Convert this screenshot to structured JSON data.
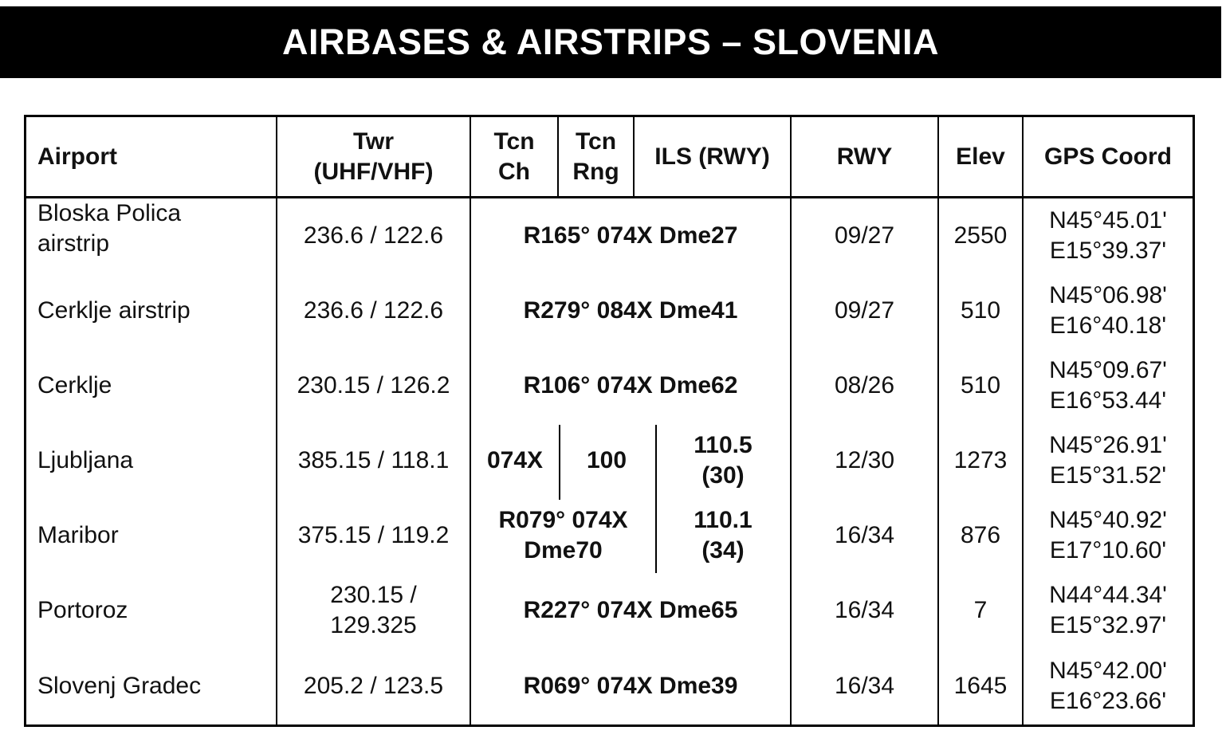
{
  "title": "AIRBASES & AIRSTRIPS – SLOVENIA",
  "headers": {
    "airport": "Airport",
    "twr_line1": "Twr",
    "twr_line2": "(UHF/VHF)",
    "tcn_ch_line1": "Tcn",
    "tcn_ch_line2": "Ch",
    "tcn_rng_line1": "Tcn",
    "tcn_rng_line2": "Rng",
    "ils": "ILS (RWY)",
    "rwy": "RWY",
    "elev": "Elev",
    "gps": "GPS Coord"
  },
  "rows": [
    {
      "airport_1": "Bloska Polica",
      "airport_2": "airstrip",
      "twr": "236.6 / 122.6",
      "nav": "R165° 074X Dme27",
      "rwy": "09/27",
      "elev": "2550",
      "lat": "N45°45.01'",
      "lon": "E15°39.37'"
    },
    {
      "airport": "Cerklje airstrip",
      "twr": "236.6 / 122.6",
      "nav": "R279° 084X Dme41",
      "rwy": "09/27",
      "elev": "510",
      "lat": "N45°06.98'",
      "lon": "E16°40.18'"
    },
    {
      "airport": "Cerklje",
      "twr": "230.15 / 126.2",
      "nav": "R106° 074X Dme62",
      "rwy": "08/26",
      "elev": "510",
      "lat": "N45°09.67'",
      "lon": "E16°53.44'"
    },
    {
      "airport": "Ljubljana",
      "twr": "385.15 / 118.1",
      "tcn_ch": "074X",
      "tcn_rng": "100",
      "ils_1": "110.5",
      "ils_2": "(30)",
      "rwy": "12/30",
      "elev": "1273",
      "lat": "N45°26.91'",
      "lon": "E15°31.52'"
    },
    {
      "airport": "Maribor",
      "twr": "375.15 / 119.2",
      "nav_1": "R079° 074X",
      "nav_2": "Dme70",
      "ils_1": "110.1",
      "ils_2": "(34)",
      "rwy": "16/34",
      "elev": "876",
      "lat": "N45°40.92'",
      "lon": "E17°10.60'"
    },
    {
      "airport": "Portoroz",
      "twr_1": "230.15 /",
      "twr_2": "129.325",
      "nav": "R227° 074X Dme65",
      "rwy": "16/34",
      "elev": "7",
      "lat": "N44°44.34'",
      "lon": "E15°32.97'"
    },
    {
      "airport": "Slovenj Gradec",
      "twr": "205.2 / 123.5",
      "nav": "R069° 074X Dme39",
      "rwy": "16/34",
      "elev": "1645",
      "lat": "N45°42.00'",
      "lon": "E16°23.66'"
    }
  ]
}
